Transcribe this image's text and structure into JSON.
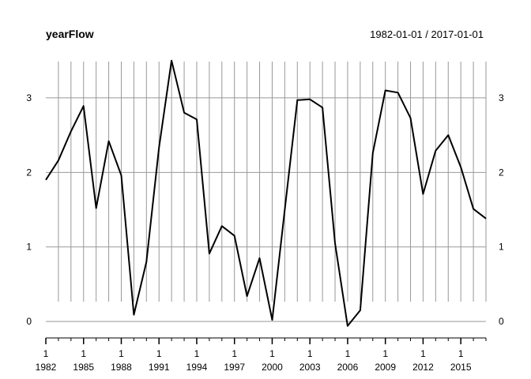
{
  "chart_data": {
    "type": "line",
    "title": "yearFlow",
    "date_range": "1982-01-01 / 2017-01-01",
    "x": [
      1982,
      1983,
      1984,
      1985,
      1986,
      1987,
      1988,
      1989,
      1990,
      1991,
      1992,
      1993,
      1994,
      1995,
      1996,
      1997,
      1998,
      1999,
      2000,
      2001,
      2002,
      2003,
      2004,
      2005,
      2006,
      2007,
      2008,
      2009,
      2010,
      2011,
      2012,
      2013,
      2014,
      2015,
      2016,
      2017
    ],
    "series": [
      {
        "values": [
          1.9,
          2.16,
          2.55,
          2.89,
          1.52,
          2.42,
          1.96,
          0.09,
          0.8,
          2.33,
          3.5,
          2.8,
          2.71,
          0.91,
          1.28,
          1.15,
          0.34,
          0.85,
          0.02,
          1.5,
          2.97,
          2.98,
          2.87,
          1.05,
          -0.06,
          0.15,
          2.26,
          3.1,
          3.07,
          2.73,
          1.71,
          2.29,
          2.5,
          2.07,
          1.51,
          1.38
        ]
      }
    ],
    "ylim": [
      -0.2,
      3.55
    ],
    "yticks": [
      0,
      1,
      2,
      3
    ],
    "xtick_major_labels": [
      "1982",
      "1985",
      "1988",
      "1991",
      "1994",
      "1997",
      "2000",
      "2003",
      "2006",
      "2009",
      "2012",
      "2015"
    ],
    "xtick_minor_label": "1",
    "grid": true,
    "line_color": "#000000",
    "grid_color": "#999999"
  }
}
